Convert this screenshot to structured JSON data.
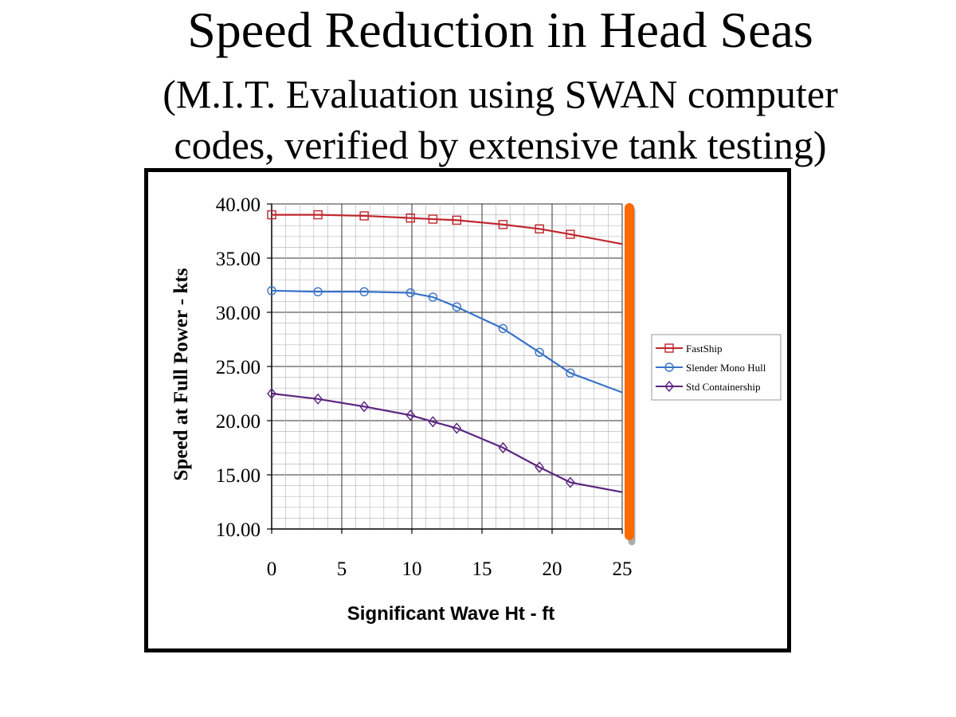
{
  "slide": {
    "title": "Speed Reduction in Head Seas",
    "subtitle_line1": "(M.I.T. Evaluation using SWAN computer",
    "subtitle_line2": "codes, verified by extensive tank testing)"
  },
  "chart_data": {
    "type": "line",
    "xlabel": "Significant Wave Ht - ft",
    "ylabel": "Speed at Full Power - kts",
    "xlim": [
      0,
      25
    ],
    "ylim": [
      10,
      40
    ],
    "xticks": [
      "0",
      "5",
      "10",
      "15",
      "20",
      "25"
    ],
    "yticks": [
      "10.00",
      "15.00",
      "20.00",
      "25.00",
      "30.00",
      "35.00",
      "40.00"
    ],
    "grid": true,
    "legend_position": "right",
    "highlight_line": {
      "x": 25,
      "color": "#ff6a00"
    },
    "series": [
      {
        "name": "FastShip",
        "color": "#c0262d",
        "marker": "square",
        "x": [
          0,
          3.3,
          6.6,
          9.9,
          11.5,
          13.2,
          16.5,
          19.1,
          21.3,
          25
        ],
        "y": [
          39.0,
          39.0,
          38.9,
          38.7,
          38.6,
          38.5,
          38.1,
          37.7,
          37.2,
          36.3
        ]
      },
      {
        "name": "Slender Mono Hull",
        "color": "#3a72c8",
        "marker": "circle",
        "x": [
          0,
          3.3,
          6.6,
          9.9,
          11.5,
          13.2,
          16.5,
          19.1,
          21.3,
          25
        ],
        "y": [
          32.0,
          31.9,
          31.9,
          31.8,
          31.4,
          30.5,
          28.5,
          26.3,
          24.4,
          22.6
        ]
      },
      {
        "name": "Std Containership",
        "color": "#5b2580",
        "marker": "diamond",
        "x": [
          0,
          3.3,
          6.6,
          9.9,
          11.5,
          13.2,
          16.5,
          19.1,
          21.3,
          25
        ],
        "y": [
          22.5,
          22.0,
          21.3,
          20.5,
          19.9,
          19.3,
          17.5,
          15.7,
          14.3,
          13.4
        ]
      }
    ]
  }
}
